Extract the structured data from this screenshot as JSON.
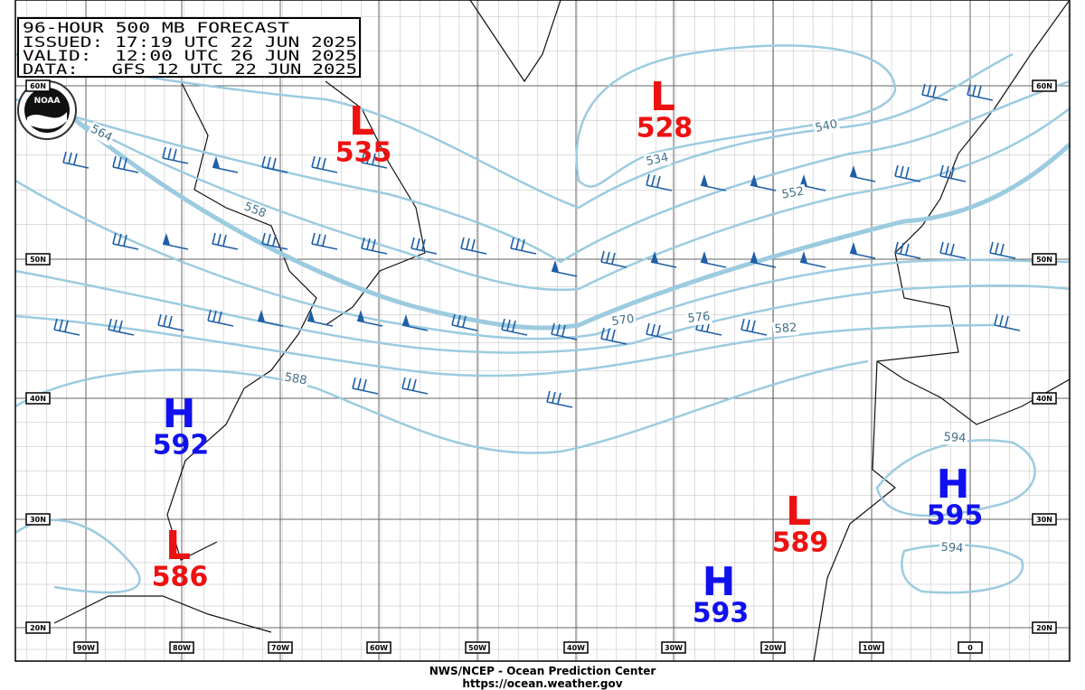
{
  "header": {
    "lines": [
      "96-HOUR 500 MB FORECAST",
      "ISSUED: 17:19 UTC 22 JUN 2025",
      "VALID:  12:00 UTC 26 JUN 2025",
      "DATA:   GFS 12 UTC 22 JUN 2025"
    ]
  },
  "logo": "NOAA",
  "centers": [
    {
      "type": "L",
      "value": 535
    },
    {
      "type": "L",
      "value": 528
    },
    {
      "type": "H",
      "value": 592
    },
    {
      "type": "L",
      "value": 586
    },
    {
      "type": "L",
      "value": 589
    },
    {
      "type": "H",
      "value": 593
    },
    {
      "type": "H",
      "value": 595
    }
  ],
  "contour_labels": [
    564,
    558,
    588,
    534,
    540,
    552,
    570,
    576,
    582,
    594,
    594
  ],
  "lat_labels": [
    "60N",
    "50N",
    "40N",
    "30N",
    "20N"
  ],
  "lon_labels": [
    "90W",
    "80W",
    "70W",
    "60W",
    "50W",
    "40W",
    "30W",
    "20W",
    "10W",
    "0"
  ],
  "footer": [
    "NWS/NCEP - Ocean Prediction Center",
    "https://ocean.weather.gov"
  ]
}
